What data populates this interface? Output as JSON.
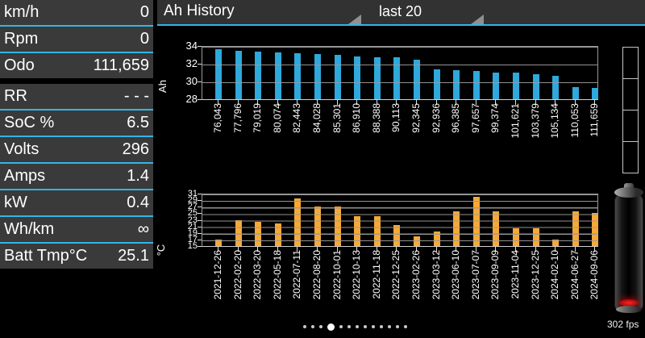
{
  "topbar": {
    "title": "Ah History",
    "range_selected": "last 20"
  },
  "sidebar": {
    "groups": [
      [
        {
          "label": "km/h",
          "value": "0"
        },
        {
          "label": "Rpm",
          "value": "0"
        },
        {
          "label": "Odo",
          "value": "111,659"
        }
      ],
      [
        {
          "label": "RR",
          "value": "- - -"
        },
        {
          "label": "SoC %",
          "value": "6.5"
        },
        {
          "label": "Volts",
          "value": "296"
        },
        {
          "label": "Amps",
          "value": "1.4"
        },
        {
          "label": "kW",
          "value": "0.4"
        },
        {
          "label": "Wh/km",
          "value": "∞"
        },
        {
          "label": "Batt Tmp°C",
          "value": "25.1"
        }
      ]
    ]
  },
  "chart_data": [
    {
      "type": "bar",
      "ylabel": "Ah",
      "ylim": [
        28,
        34
      ],
      "ytick_step": 2,
      "bar_color": "#2fa8dc",
      "categories": [
        "76,043",
        "77,796",
        "79,019",
        "80,074",
        "82,443",
        "84,028",
        "85,301",
        "86,910",
        "88,388",
        "90,113",
        "92,345",
        "92,936",
        "96,385",
        "97,657",
        "99,374",
        "101,621",
        "103,379",
        "105,134",
        "110,053",
        "111,659"
      ],
      "values": [
        33.6,
        33.5,
        33.4,
        33.3,
        33.2,
        33.1,
        33.0,
        32.8,
        32.7,
        32.7,
        32.5,
        31.4,
        31.3,
        31.2,
        31.0,
        31.0,
        30.8,
        30.6,
        29.4,
        29.3
      ]
    },
    {
      "type": "bar",
      "ylabel": "°C",
      "ylim": [
        15,
        31
      ],
      "ytick_step": 2,
      "bar_color": "#f7a936",
      "categories": [
        "2021-12-26",
        "2022-02-20",
        "2022-03-20",
        "2022-05-18",
        "2022-07-11",
        "2022-08-20",
        "2022-10-01",
        "2022-10-13",
        "2022-11-18",
        "2022-12-25",
        "2023-02-26",
        "2023-03-12",
        "2023-06-10",
        "2023-07-07",
        "2023-09-09",
        "2023-11-04",
        "2023-12-25",
        "2024-02-10",
        "2024-06-27",
        "2024-09-06"
      ],
      "values": [
        17,
        23,
        22.5,
        22,
        29.5,
        27,
        27,
        24,
        24,
        21.5,
        18,
        19.5,
        25.5,
        30,
        25.5,
        20.5,
        20.5,
        17,
        25.5,
        25
      ]
    }
  ],
  "pager": {
    "total": 13,
    "active_index": 3
  },
  "status": {
    "fps": "302 fps"
  },
  "colors": {
    "accent_blue": "#33b5e5",
    "bar_blue": "#2fa8dc",
    "bar_orange": "#f7a936",
    "battery_low_red": "#cc0000",
    "row_background": "#3a3a3a"
  }
}
